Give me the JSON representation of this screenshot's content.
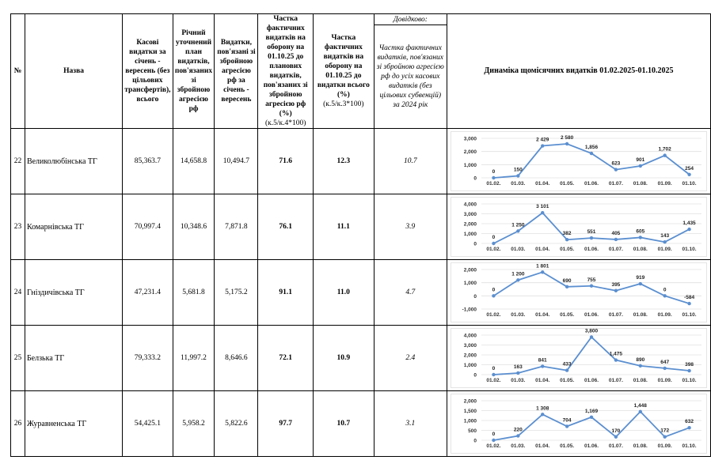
{
  "header": {
    "num": "№",
    "name": "Назва",
    "col3": "Касові видатки за січень - вересень (без цільових трансфертів), всього",
    "col4": "Річний уточнений план видатків, пов'язаних зі збройною агресією рф",
    "col5": "Видатки, пов'язані зі збройною агресією рф за січень - вересень",
    "col6": "Частка фактичних видатків на оборону на 01.10.25 до планових видатків, пов'язаних зі збройною агресією рф (%)",
    "col6_formula": "(к.5/к.4*100)",
    "col7": "Частка фактичних видатків на оборону на 01.10.25 до видатки всього (%)",
    "col7_formula": "(к.5/к.3*100)",
    "reference": "Довідково:",
    "col8": "Частка фактичних видатків, пов'язаних зі збройною агресією рф до усіх касових видатків (без цільових субвенцій) за 2024 рік",
    "chart_title": "Динаміка щомісячних видатків 01.02.2025-01.10.2025"
  },
  "rows": [
    {
      "num": "22",
      "name": "Великолюбінська ТГ",
      "c3": "85,363.7",
      "c4": "14,658.8",
      "c5": "10,494.7",
      "c6": "71.6",
      "c7": "12.3",
      "c8": "10.7"
    },
    {
      "num": "23",
      "name": "Комарнівська ТГ",
      "c3": "70,997.4",
      "c4": "10,348.6",
      "c5": "7,871.8",
      "c6": "76.1",
      "c7": "11.1",
      "c8": "3.9"
    },
    {
      "num": "24",
      "name": "Гніздичівська ТГ",
      "c3": "47,231.4",
      "c4": "5,681.8",
      "c5": "5,175.2",
      "c6": "91.1",
      "c7": "11.0",
      "c8": "4.7"
    },
    {
      "num": "25",
      "name": "Белзька ТГ",
      "c3": "79,333.2",
      "c4": "11,997.2",
      "c5": "8,646.6",
      "c6": "72.1",
      "c7": "10.9",
      "c8": "2.4"
    },
    {
      "num": "26",
      "name": "Журавненська ТГ",
      "c3": "54,425.1",
      "c4": "5,958.2",
      "c5": "5,822.6",
      "c6": "97.7",
      "c7": "10.7",
      "c8": "3.1"
    }
  ],
  "chart_data": [
    {
      "type": "line",
      "categories": [
        "01.02.",
        "01.03.",
        "01.04.",
        "01.05.",
        "01.06.",
        "01.07.",
        "01.08.",
        "01.09.",
        "01.10."
      ],
      "values": [
        0,
        150,
        2429,
        2580,
        1856,
        623,
        901,
        1702,
        254
      ],
      "labels": [
        "0",
        "150",
        "2 429",
        "2 580",
        "1,856",
        "623",
        "901",
        "1,702",
        "254"
      ],
      "ylim": [
        0,
        3000
      ],
      "yticks": [
        "0",
        "1,000",
        "2,000",
        "3,000"
      ],
      "ytick_values": [
        0,
        1000,
        2000,
        3000
      ],
      "grid": true,
      "color": "#5b8fd0"
    },
    {
      "type": "line",
      "categories": [
        "01.02.",
        "01.03.",
        "01.04.",
        "01.05.",
        "01.06.",
        "01.07.",
        "01.08.",
        "01.09.",
        "01.10."
      ],
      "values": [
        0,
        1250,
        3101,
        382,
        551,
        405,
        605,
        143,
        1435
      ],
      "labels": [
        "0",
        "1 250",
        "3 101",
        "382",
        "551",
        "405",
        "605",
        "143",
        "1,435"
      ],
      "ylim": [
        0,
        4000
      ],
      "yticks": [
        "0",
        "1,000",
        "2,000",
        "3,000",
        "4,000"
      ],
      "ytick_values": [
        0,
        1000,
        2000,
        3000,
        4000
      ],
      "grid": true,
      "color": "#5b8fd0"
    },
    {
      "type": "line",
      "categories": [
        "01.02.",
        "01.03.",
        "01.04.",
        "01.05.",
        "01.06.",
        "01.07.",
        "01.08.",
        "01.09.",
        "01.10."
      ],
      "values": [
        0,
        1200,
        1801,
        690,
        755,
        395,
        919,
        0,
        -584
      ],
      "labels": [
        "0",
        "1 200",
        "1 801",
        "690",
        "755",
        "395",
        "919",
        "0",
        "-584"
      ],
      "ylim": [
        -1000,
        2000
      ],
      "yticks": [
        "-1,000",
        "0",
        "1,000",
        "2,000"
      ],
      "ytick_values": [
        -1000,
        0,
        1000,
        2000
      ],
      "grid": true,
      "color": "#5b8fd0"
    },
    {
      "type": "line",
      "categories": [
        "01.02.",
        "01.03.",
        "01.04.",
        "01.05.",
        "01.06.",
        "01.07.",
        "01.08.",
        "01.09.",
        "01.10."
      ],
      "values": [
        0,
        163,
        841,
        433,
        3800,
        1475,
        890,
        647,
        398
      ],
      "labels": [
        "0",
        "163",
        "841",
        "433",
        "3,800",
        "1,475",
        "890",
        "647",
        "398"
      ],
      "ylim": [
        0,
        4000
      ],
      "yticks": [
        "0",
        "1,000",
        "2,000",
        "3,000",
        "4,000"
      ],
      "ytick_values": [
        0,
        1000,
        2000,
        3000,
        4000
      ],
      "grid": true,
      "color": "#5b8fd0"
    },
    {
      "type": "line",
      "categories": [
        "01.02.",
        "01.03.",
        "01.04.",
        "01.05.",
        "01.06.",
        "01.07.",
        "01.08.",
        "01.09.",
        "01.10."
      ],
      "values": [
        0,
        220,
        1308,
        704,
        1169,
        170,
        1448,
        172,
        632
      ],
      "labels": [
        "0",
        "220",
        "1 308",
        "704",
        "1,169",
        "170",
        "1,448",
        "172",
        "632"
      ],
      "ylim": [
        0,
        2000
      ],
      "yticks": [
        "0",
        "500",
        "1,000",
        "1,500",
        "2,000"
      ],
      "ytick_values": [
        0,
        500,
        1000,
        1500,
        2000
      ],
      "grid": true,
      "color": "#5b8fd0"
    }
  ]
}
